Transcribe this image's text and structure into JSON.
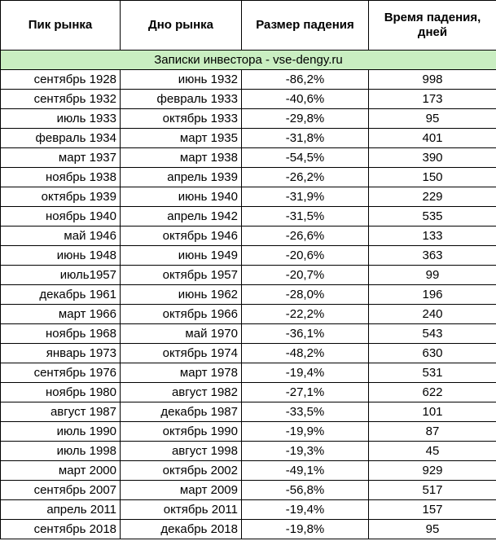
{
  "table": {
    "header": [
      "Пик рынка",
      "Дно рынка",
      "Размер падения",
      "Время падения, дней"
    ],
    "banner": "Записки инвестора - vse-dengy.ru",
    "rows": [
      [
        "сентябрь 1928",
        "июнь 1932",
        "-86,2%",
        "998"
      ],
      [
        "сентябрь 1932",
        "февраль 1933",
        "-40,6%",
        "173"
      ],
      [
        "июль 1933",
        "октябрь 1933",
        "-29,8%",
        "95"
      ],
      [
        "февраль 1934",
        "март 1935",
        "-31,8%",
        "401"
      ],
      [
        "март 1937",
        "март 1938",
        "-54,5%",
        "390"
      ],
      [
        "ноябрь 1938",
        "апрель 1939",
        "-26,2%",
        "150"
      ],
      [
        "октябрь 1939",
        "июнь 1940",
        "-31,9%",
        "229"
      ],
      [
        "ноябрь 1940",
        "апрель 1942",
        "-31,5%",
        "535"
      ],
      [
        "май 1946",
        "октябрь 1946",
        "-26,6%",
        "133"
      ],
      [
        "июнь 1948",
        "июнь 1949",
        "-20,6%",
        "363"
      ],
      [
        "июль1957",
        "октябрь 1957",
        "-20,7%",
        "99"
      ],
      [
        "декабрь 1961",
        "июнь 1962",
        "-28,0%",
        "196"
      ],
      [
        "март 1966",
        "октябрь 1966",
        "-22,2%",
        "240"
      ],
      [
        "ноябрь 1968",
        "май 1970",
        "-36,1%",
        "543"
      ],
      [
        "январь 1973",
        "октябрь 1974",
        "-48,2%",
        "630"
      ],
      [
        "сентябрь 1976",
        "март 1978",
        "-19,4%",
        "531"
      ],
      [
        "ноябрь 1980",
        "август 1982",
        "-27,1%",
        "622"
      ],
      [
        "август 1987",
        "декабрь 1987",
        "-33,5%",
        "101"
      ],
      [
        "июль 1990",
        "октябрь 1990",
        "-19,9%",
        "87"
      ],
      [
        "июль 1998",
        "август 1998",
        "-19,3%",
        "45"
      ],
      [
        "март 2000",
        "октябрь 2002",
        "-49,1%",
        "929"
      ],
      [
        "сентябрь 2007",
        "март 2009",
        "-56,8%",
        "517"
      ],
      [
        "апрель 2011",
        "октябрь 2011",
        "-19,4%",
        "157"
      ],
      [
        "сентябрь 2018",
        "декабрь 2018",
        "-19,8%",
        "95"
      ]
    ]
  }
}
